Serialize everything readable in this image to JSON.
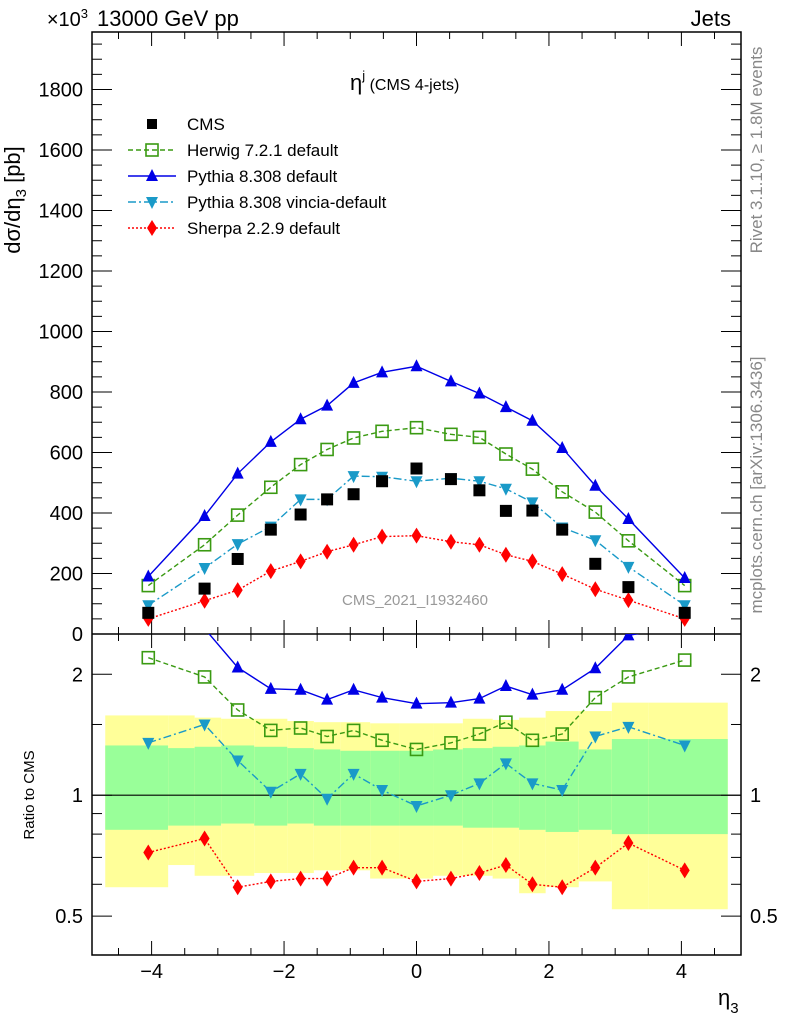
{
  "header": {
    "left": "13000 GeV pp",
    "right": "Jets",
    "exponent": "×10",
    "exponent_power": "3"
  },
  "side": {
    "rivet": "Rivet 3.1.10, ≥ 1.8M events",
    "mcplots": "mcplots.cern.ch [arXiv:1306.3436]"
  },
  "watermark": "CMS_2021_I1932460",
  "chart_data": {
    "type": "line",
    "title": "η^j (CMS 4-jets)",
    "title_main": "η",
    "title_sup": "j",
    "title_rest": " (CMS 4-jets)",
    "xlabel": "η",
    "xlabel_sub": "3",
    "ylabel": "dσ/dη",
    "ylabel_sub": "3",
    "ylabel_unit": " [pb]",
    "ratio_ylabel": "Ratio to CMS",
    "xlim": [
      -4.9,
      4.9
    ],
    "ylim": [
      0,
      1990
    ],
    "ratio_ylim": [
      0.4,
      2.52
    ],
    "xticks": [
      -4,
      -2,
      0,
      2,
      4
    ],
    "xtick_labels": [
      "−4",
      "−2",
      "0",
      "2",
      "4"
    ],
    "yticks": [
      0,
      200,
      400,
      600,
      800,
      1000,
      1200,
      1400,
      1600,
      1800
    ],
    "ytick_labels": [
      "0",
      "200",
      "400",
      "600",
      "800",
      "1000",
      "1200",
      "1400",
      "1600",
      "1800"
    ],
    "ratio_ticks": [
      0.5,
      1,
      2
    ],
    "ratio_tick_labels": [
      "0.5",
      "1",
      "2"
    ],
    "legend_position": "top-left",
    "x": [
      -4.05,
      -3.2,
      -2.7,
      -2.2,
      -1.75,
      -1.35,
      -0.95,
      -0.52,
      0,
      0.52,
      0.95,
      1.35,
      1.75,
      2.2,
      2.7,
      3.2,
      4.05
    ],
    "series": [
      {
        "name": "CMS",
        "color": "#000000",
        "marker": "square",
        "dash": "none",
        "values": [
          70,
          150,
          248,
          345,
          395,
          445,
          462,
          505,
          547,
          512,
          475,
          407,
          408,
          345,
          232,
          155,
          70
        ],
        "ratio": [
          1,
          1,
          1,
          1,
          1,
          1,
          1,
          1,
          1,
          1,
          1,
          1,
          1,
          1,
          1,
          1,
          1
        ]
      },
      {
        "name": "Herwig 7.2.1 default",
        "color": "#3a9a12",
        "marker": "open-square",
        "dash": "5,3",
        "values": [
          160,
          295,
          393,
          485,
          560,
          610,
          648,
          670,
          682,
          660,
          650,
          595,
          545,
          470,
          403,
          308,
          160
        ],
        "ratio": [
          2.2,
          1.97,
          1.63,
          1.45,
          1.47,
          1.4,
          1.45,
          1.37,
          1.3,
          1.35,
          1.42,
          1.52,
          1.37,
          1.42,
          1.75,
          1.97,
          2.17
        ]
      },
      {
        "name": "Pythia 8.308 default",
        "color": "#0000e6",
        "marker": "triangle-up",
        "dash": "none",
        "values": [
          190,
          390,
          530,
          635,
          710,
          755,
          830,
          865,
          885,
          835,
          795,
          750,
          705,
          615,
          490,
          380,
          185
        ],
        "ratio": [
          2.7,
          2.6,
          2.08,
          1.84,
          1.83,
          1.73,
          1.83,
          1.75,
          1.69,
          1.7,
          1.74,
          1.87,
          1.78,
          1.83,
          2.07,
          2.5,
          2.65
        ]
      },
      {
        "name": "Pythia 8.308 vincia-default",
        "color": "#1a9ac8",
        "marker": "triangle-down",
        "dash": "8,3,2,3",
        "values": [
          95,
          218,
          297,
          355,
          445,
          445,
          522,
          520,
          505,
          515,
          505,
          480,
          435,
          352,
          310,
          222,
          95
        ],
        "ratio": [
          1.35,
          1.5,
          1.22,
          1.02,
          1.13,
          0.98,
          1.13,
          1.03,
          0.94,
          1.0,
          1.07,
          1.2,
          1.07,
          1.03,
          1.4,
          1.48,
          1.33
        ]
      },
      {
        "name": "Sherpa 2.2.9 default",
        "color": "#ff0000",
        "marker": "diamond",
        "dash": "2,2",
        "values": [
          50,
          110,
          145,
          208,
          240,
          272,
          295,
          322,
          325,
          305,
          295,
          262,
          240,
          198,
          148,
          112,
          50
        ],
        "ratio": [
          0.72,
          0.78,
          0.59,
          0.61,
          0.62,
          0.62,
          0.66,
          0.66,
          0.61,
          0.62,
          0.64,
          0.67,
          0.6,
          0.59,
          0.66,
          0.76,
          0.65
        ]
      }
    ],
    "bands": {
      "bin_edges": [
        -4.7,
        -3.75,
        -3.35,
        -2.95,
        -2.45,
        -1.95,
        -1.55,
        -1.15,
        -0.7,
        -0.25,
        0.25,
        0.7,
        1.15,
        1.55,
        1.95,
        2.45,
        2.95,
        3.5,
        4.7
      ],
      "stat_color": "#99ff99",
      "total_color": "#ffff99",
      "green_low": [
        0.82,
        0.84,
        0.84,
        0.85,
        0.84,
        0.85,
        0.84,
        0.84,
        0.84,
        0.84,
        0.84,
        0.83,
        0.83,
        0.82,
        0.81,
        0.82,
        0.8,
        0.8
      ],
      "green_high": [
        1.33,
        1.31,
        1.32,
        1.33,
        1.32,
        1.31,
        1.3,
        1.29,
        1.29,
        1.29,
        1.3,
        1.31,
        1.32,
        1.33,
        1.36,
        1.3,
        1.38,
        1.38
      ],
      "yellow_low": [
        0.59,
        0.67,
        0.63,
        0.63,
        0.64,
        0.64,
        0.65,
        0.65,
        0.62,
        0.62,
        0.63,
        0.63,
        0.62,
        0.57,
        0.59,
        0.61,
        0.52,
        0.52
      ],
      "yellow_high": [
        1.58,
        1.58,
        1.56,
        1.55,
        1.55,
        1.53,
        1.52,
        1.52,
        1.51,
        1.51,
        1.51,
        1.55,
        1.54,
        1.56,
        1.62,
        1.62,
        1.7,
        1.7
      ]
    }
  }
}
